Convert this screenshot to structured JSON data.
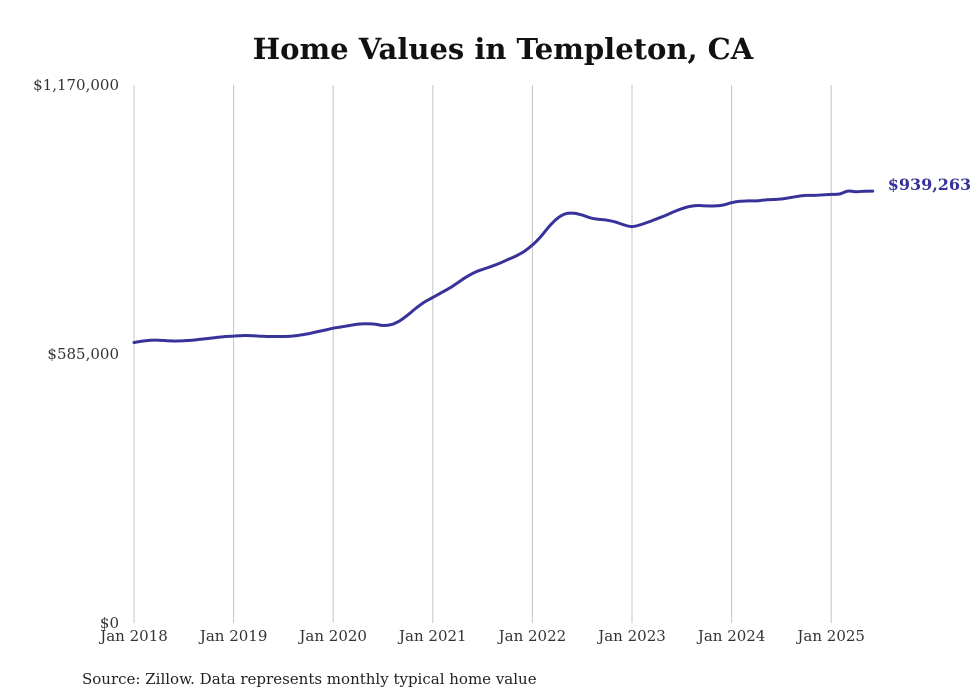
{
  "chart_data": {
    "type": "line",
    "title": "Home Values in Templeton, CA",
    "source": "Source: Zillow. Data represents monthly typical home value",
    "xlabel": "",
    "ylabel": "",
    "ylim": [
      0,
      1170000
    ],
    "y_ticks": [
      0,
      585000,
      1170000
    ],
    "y_tick_labels": [
      "$0",
      "$585,000",
      "$1,170,000"
    ],
    "x_ticks": [
      "2018-01",
      "2019-01",
      "2020-01",
      "2021-01",
      "2022-01",
      "2023-01",
      "2024-01",
      "2025-01"
    ],
    "x_tick_labels": [
      "Jan 2018",
      "Jan 2019",
      "Jan 2020",
      "Jan 2021",
      "Jan 2022",
      "Jan 2023",
      "Jan 2024",
      "Jan 2025"
    ],
    "grid": "vertical",
    "line_color": "#38339a",
    "end_label": "$939,263",
    "series": [
      {
        "x": [
          "2018-01",
          "2018-02",
          "2018-03",
          "2018-04",
          "2018-05",
          "2018-06",
          "2018-07",
          "2018-08",
          "2018-09",
          "2018-10",
          "2018-11",
          "2018-12",
          "2019-01",
          "2019-02",
          "2019-03",
          "2019-04",
          "2019-05",
          "2019-06",
          "2019-07",
          "2019-08",
          "2019-09",
          "2019-10",
          "2019-11",
          "2019-12",
          "2020-01",
          "2020-02",
          "2020-03",
          "2020-04",
          "2020-05",
          "2020-06",
          "2020-07",
          "2020-08",
          "2020-09",
          "2020-10",
          "2020-11",
          "2020-12",
          "2021-01",
          "2021-02",
          "2021-03",
          "2021-04",
          "2021-05",
          "2021-06",
          "2021-07",
          "2021-08",
          "2021-09",
          "2021-10",
          "2021-11",
          "2021-12",
          "2022-01",
          "2022-02",
          "2022-03",
          "2022-04",
          "2022-05",
          "2022-06",
          "2022-07",
          "2022-08",
          "2022-09",
          "2022-10",
          "2022-11",
          "2022-12",
          "2023-01",
          "2023-02",
          "2023-03",
          "2023-04",
          "2023-05",
          "2023-06",
          "2023-07",
          "2023-08",
          "2023-09",
          "2023-10",
          "2023-11",
          "2023-12",
          "2024-01",
          "2024-02",
          "2024-03",
          "2024-04",
          "2024-05",
          "2024-06",
          "2024-07",
          "2024-08",
          "2024-09",
          "2024-10",
          "2024-11",
          "2024-12",
          "2025-01",
          "2025-02",
          "2025-03",
          "2025-04",
          "2025-05",
          "2025-06"
        ],
        "values": [
          610000,
          613000,
          615000,
          615000,
          614000,
          613000,
          614000,
          615000,
          617000,
          619000,
          621000,
          623000,
          624000,
          625000,
          625000,
          624000,
          623000,
          623000,
          623000,
          624000,
          626000,
          629000,
          633000,
          637000,
          641000,
          644000,
          647000,
          650000,
          651000,
          650000,
          647000,
          649000,
          657000,
          670000,
          685000,
          698000,
          708000,
          718000,
          728000,
          740000,
          752000,
          762000,
          769000,
          775000,
          782000,
          790000,
          798000,
          808000,
          822000,
          840000,
          862000,
          880000,
          890000,
          891000,
          887000,
          881000,
          878000,
          876000,
          872000,
          866000,
          862000,
          866000,
          872000,
          879000,
          886000,
          894000,
          901000,
          906000,
          908000,
          907000,
          907000,
          909000,
          914000,
          917000,
          918000,
          918000,
          920000,
          921000,
          922000,
          925000,
          928000,
          930000,
          930000,
          931000,
          932000,
          933000,
          939263,
          938000,
          939000,
          939263
        ]
      }
    ]
  }
}
